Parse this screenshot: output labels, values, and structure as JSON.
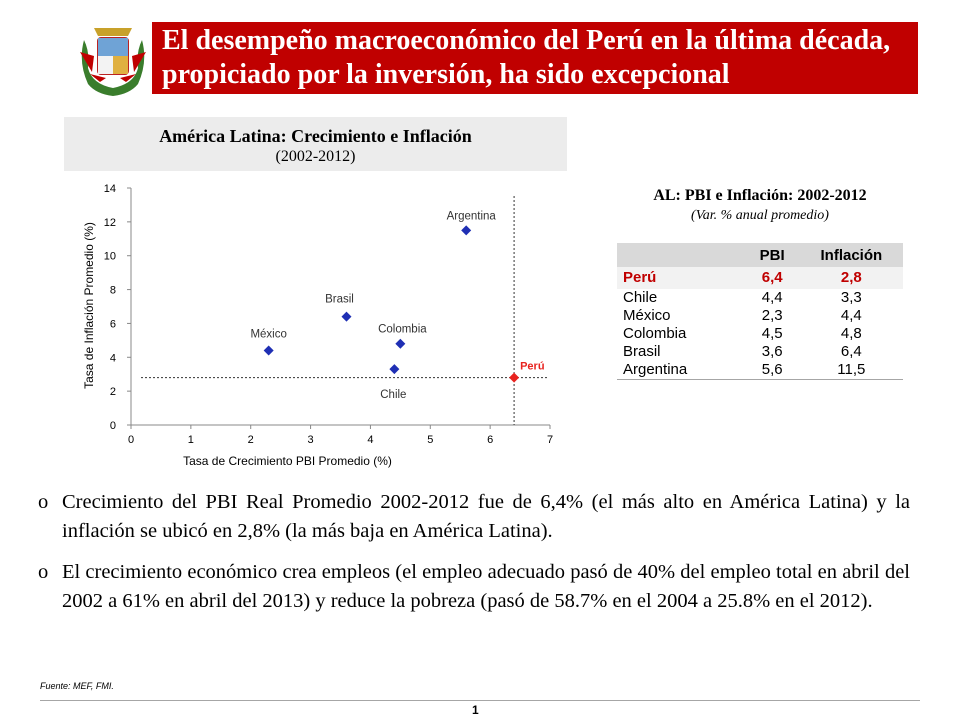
{
  "header": {
    "title": "El desempeño macroeconómico del Perú en la última década, propiciado por la inversión, ha sido excepcional"
  },
  "chart_head": {
    "title": "América Latina: Crecimiento e Inflación",
    "subtitle": "(2002-2012)"
  },
  "chart_data": {
    "type": "scatter",
    "title": "América Latina: Crecimiento e Inflación",
    "subtitle": "(2002-2012)",
    "xlabel": "Tasa de Crecimiento PBI Promedio (%)",
    "ylabel": "Tasa de Inflación Promedio (%)",
    "xlim": [
      0,
      7
    ],
    "ylim": [
      0,
      14
    ],
    "xticks": [
      0,
      1,
      2,
      3,
      4,
      5,
      6,
      7
    ],
    "yticks": [
      0,
      2,
      4,
      6,
      8,
      10,
      12,
      14
    ],
    "grid": false,
    "points": [
      {
        "name": "México",
        "x": 2.3,
        "y": 4.4,
        "color": "#1f2fb4"
      },
      {
        "name": "Brasil",
        "x": 3.6,
        "y": 6.4,
        "color": "#1f2fb4"
      },
      {
        "name": "Colombia",
        "x": 4.5,
        "y": 4.8,
        "color": "#1f2fb4"
      },
      {
        "name": "Chile",
        "x": 4.4,
        "y": 3.3,
        "color": "#1f2fb4"
      },
      {
        "name": "Argentina",
        "x": 5.6,
        "y": 11.5,
        "color": "#1f2fb4"
      },
      {
        "name": "Perú",
        "x": 6.4,
        "y": 2.8,
        "color": "#e8231f"
      }
    ],
    "reference_lines": {
      "x": 6.4,
      "y": 2.8
    }
  },
  "table": {
    "title": "AL: PBI e Inflación: 2002-2012",
    "subtitle": "(Var. % anual promedio)",
    "headers": [
      "",
      "PBI",
      "Inflación"
    ],
    "rows": [
      [
        "Perú",
        "6,4",
        "2,8"
      ],
      [
        "Chile",
        "4,4",
        "3,3"
      ],
      [
        "México",
        "2,3",
        "4,4"
      ],
      [
        "Colombia",
        "4,5",
        "4,8"
      ],
      [
        "Brasil",
        "3,6",
        "6,4"
      ],
      [
        "Argentina",
        "5,6",
        "11,5"
      ]
    ]
  },
  "bullets": [
    "Crecimiento del PBI Real Promedio 2002-2012 fue de 6,4% (el más alto en América Latina) y la inflación se ubicó en 2,8% (la más baja en América Latina).",
    "El crecimiento económico crea empleos (el empleo adecuado pasó de 40% del empleo total en abril del 2002 a 61% en abril del 2013) y reduce la pobreza (pasó de 58.7% en el 2004 a 25.8% en el 2012)."
  ],
  "bullet_marker": "o",
  "footer": {
    "source": "Fuente: MEF, FMI.",
    "page": "1"
  },
  "colors": {
    "brand_red": "#c00000",
    "series_blue": "#1f2fb4",
    "highlight_red": "#e8231f"
  },
  "icons": {
    "crest": "peru-coat-of-arms-icon"
  }
}
